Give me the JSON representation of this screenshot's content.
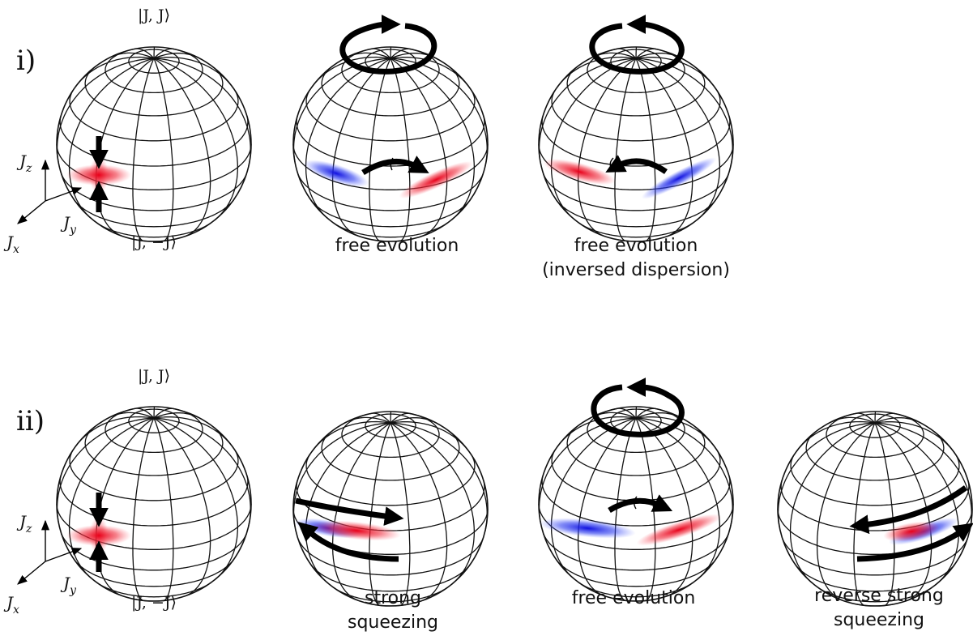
{
  "rows": [
    {
      "label": "i)",
      "top_ket": "|J, J⟩",
      "bottom_ket": "|J, −J⟩",
      "axes": {
        "z": {
          "symbol": "J",
          "sub": "z"
        },
        "y": {
          "symbol": "J",
          "sub": "y"
        },
        "x": {
          "symbol": "J",
          "sub": "x"
        }
      },
      "captions": [
        [
          "free evolution"
        ],
        [
          "free evolution",
          "(inversed dispersion)"
        ]
      ]
    },
    {
      "label": "ii)",
      "top_ket": "|J, J⟩",
      "bottom_ket": "|J, −J⟩",
      "axes": {
        "z": {
          "symbol": "J",
          "sub": "z"
        },
        "y": {
          "symbol": "J",
          "sub": "y"
        },
        "x": {
          "symbol": "J",
          "sub": "x"
        }
      },
      "captions": [
        [
          "strong",
          "squeezing"
        ],
        [
          "free evolution"
        ],
        [
          "reverse strong",
          "squeezing"
        ]
      ]
    }
  ]
}
